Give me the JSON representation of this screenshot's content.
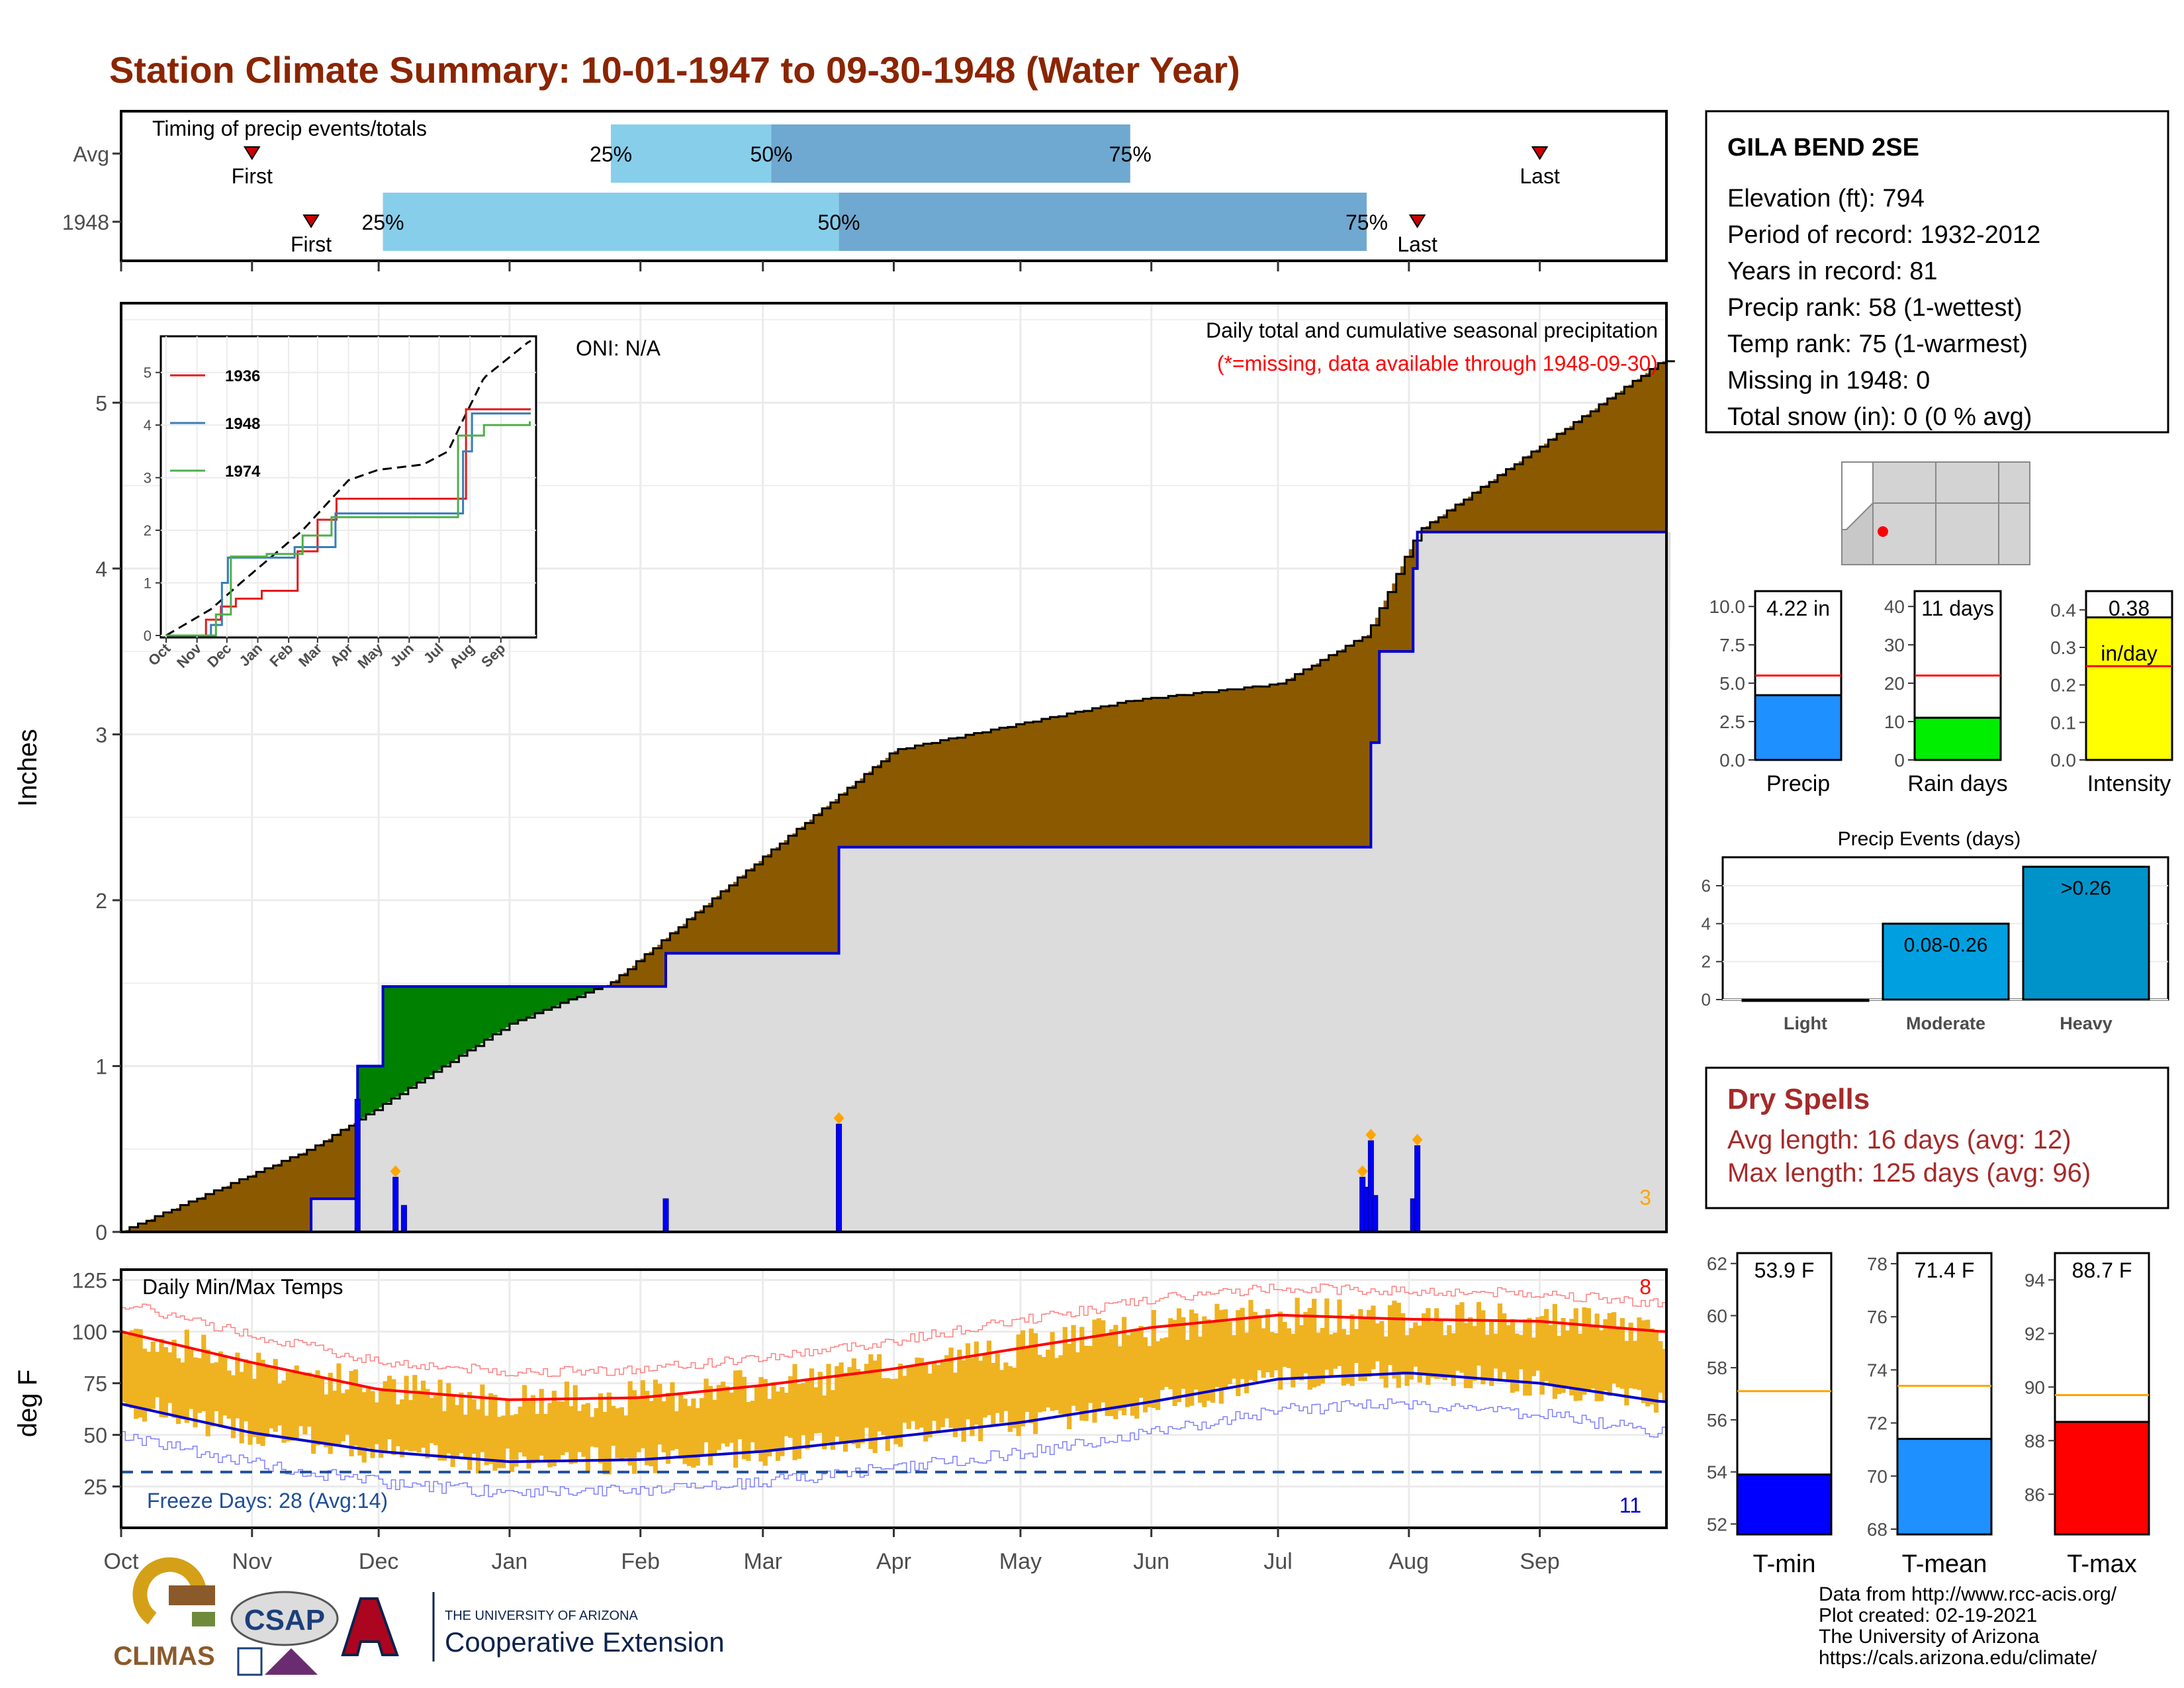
{
  "title": "Station Climate Summary: 10-01-1947 to 09-30-1948 (Water Year)",
  "timing": {
    "label": "Timing of precip events/totals",
    "rows": [
      {
        "name": "Avg",
        "first": "11-01",
        "p25": "01-25",
        "p50": "03-03",
        "p75": "05-27",
        "last": "09-01"
      },
      {
        "name": "1948",
        "first": "11-15",
        "p25": "12-02",
        "p50": "03-19",
        "p75": "07-22",
        "last": "08-03"
      }
    ],
    "first_label": "First",
    "last_label": "Last",
    "p25_label": "25%",
    "p50_label": "50%",
    "p75_label": "75%"
  },
  "station": {
    "name": "GILA BEND 2SE",
    "lines": [
      "Elevation (ft): 794",
      "Period of record: 1932-2012",
      "Years in record: 81",
      "Precip rank: 58 (1-wettest)",
      "Temp rank: 75 (1-warmest)",
      "Missing in 1948: 0",
      "Total snow (in): 0 (0 % avg)"
    ]
  },
  "precip_panel": {
    "ylabel": "Inches",
    "oni": "ONI: N/A",
    "caption": "Daily total and cumulative seasonal precipitation",
    "caption_note": "(*=missing, data available through 1948-09-30)",
    "corner_count": "3",
    "yticks": [
      "0",
      "1",
      "2",
      "3",
      "4",
      "5"
    ]
  },
  "inset": {
    "yticks": [
      "0",
      "1",
      "2",
      "3",
      "4",
      "5"
    ],
    "months": [
      "Oct",
      "Nov",
      "Dec",
      "Jan",
      "Feb",
      "Mar",
      "Apr",
      "May",
      "Jun",
      "Jul",
      "Aug",
      "Sep"
    ],
    "series": [
      {
        "name": "1936",
        "color": "#e41a1c"
      },
      {
        "name": "1948",
        "color": "#377eb8"
      },
      {
        "name": "1974",
        "color": "#4daf4a"
      }
    ]
  },
  "temp_panel": {
    "ylabel": "deg F",
    "label": "Daily Min/Max Temps",
    "freeze_text": "Freeze Days: 28 (Avg:14)",
    "hot_count": "8",
    "cold_count": "11",
    "yticks": [
      "25",
      "50",
      "75",
      "100",
      "125"
    ]
  },
  "month_axis": [
    "Oct",
    "Nov",
    "Dec",
    "Jan",
    "Feb",
    "Mar",
    "Apr",
    "May",
    "Jun",
    "Jul",
    "Aug",
    "Sep"
  ],
  "small_bars": [
    {
      "label": "Precip",
      "value_text": "4.22 in",
      "yticks": [
        "0.0",
        "2.5",
        "5.0",
        "7.5",
        "10.0"
      ],
      "color": "#1e90ff"
    },
    {
      "label": "Rain days",
      "value_text": "11 days",
      "yticks": [
        "0",
        "10",
        "20",
        "30",
        "40"
      ],
      "color": "#00ee00"
    },
    {
      "label": "Intensity",
      "value_text": "0.38",
      "value_text2": "in/day",
      "yticks": [
        "0.0",
        "0.1",
        "0.2",
        "0.3",
        "0.4"
      ],
      "color": "#ffff00"
    }
  ],
  "events": {
    "title": "Precip Events (days)",
    "categories": [
      "Light",
      "Moderate",
      "Heavy"
    ],
    "bar_labels": [
      "",
      "0.08-0.26",
      ">0.26"
    ],
    "yticks": [
      "0",
      "2",
      "4",
      "6"
    ]
  },
  "dry_spells": {
    "title": "Dry Spells",
    "avg": "Avg length: 16 days (avg: 12)",
    "max": "Max length: 125 days (avg: 96)"
  },
  "temp_bars": [
    {
      "label": "T-min",
      "value_text": "53.9 F",
      "yticks": [
        "52",
        "54",
        "56",
        "58",
        "60",
        "62"
      ],
      "color": "#0000ff"
    },
    {
      "label": "T-mean",
      "value_text": "71.4 F",
      "yticks": [
        "68",
        "70",
        "72",
        "74",
        "76",
        "78"
      ],
      "color": "#1e90ff"
    },
    {
      "label": "T-max",
      "value_text": "88.7 F",
      "yticks": [
        "86",
        "88",
        "90",
        "92",
        "94"
      ],
      "color": "#ff0000"
    }
  ],
  "credits": [
    "Data from http://www.rcc-acis.org/",
    "Plot created: 02-19-2021",
    "The University of Arizona",
    "https://cals.arizona.edu/climate/"
  ],
  "logos": {
    "climas": "CLIMAS",
    "csap": "CSAP",
    "ua_small": "THE UNIVERSITY OF ARIZONA",
    "ua_big": "Cooperative Extension"
  },
  "chart_data": [
    {
      "type": "area",
      "ylim": [
        0,
        5.6
      ],
      "cumulative_avg": {
        "x": [
          "10-01",
          "11-15",
          "12-01",
          "01-01",
          "01-25",
          "03-03",
          "04-01",
          "05-27",
          "07-01",
          "07-22",
          "08-03",
          "09-30"
        ],
        "y": [
          0.0,
          0.5,
          0.75,
          1.25,
          1.5,
          2.3,
          2.9,
          3.2,
          3.3,
          3.6,
          4.22,
          5.25
        ]
      },
      "cumulative_1948": {
        "x": [
          "10-01",
          "11-15",
          "11-26",
          "12-02",
          "01-12",
          "02-07",
          "03-19",
          "07-21",
          "07-23",
          "07-25",
          "08-02",
          "08-03",
          "09-30"
        ],
        "y": [
          0.0,
          0.2,
          1.0,
          1.48,
          1.48,
          1.68,
          2.32,
          2.32,
          2.95,
          3.5,
          4.0,
          4.22,
          4.22
        ]
      },
      "daily_precip": {
        "x": [
          "11-26",
          "12-05",
          "12-07",
          "02-07",
          "03-19",
          "07-21",
          "07-22",
          "07-23",
          "07-24",
          "08-02",
          "08-03"
        ],
        "y": [
          0.8,
          0.33,
          0.16,
          0.2,
          0.65,
          0.33,
          0.27,
          0.55,
          0.22,
          0.2,
          0.52
        ]
      }
    },
    {
      "type": "line",
      "ylim": [
        5,
        130
      ],
      "avg_max": {
        "x": [
          "10-01",
          "11-01",
          "12-01",
          "01-01",
          "02-01",
          "03-01",
          "04-01",
          "05-01",
          "06-01",
          "07-01",
          "08-01",
          "09-01",
          "09-30"
        ],
        "y": [
          100,
          85,
          72,
          67,
          68,
          74,
          82,
          92,
          102,
          108,
          106,
          105,
          100
        ]
      },
      "avg_min": {
        "x": [
          "10-01",
          "11-01",
          "12-01",
          "01-01",
          "02-01",
          "03-01",
          "04-01",
          "05-01",
          "06-01",
          "07-01",
          "08-01",
          "09-01",
          "09-30"
        ],
        "y": [
          65,
          51,
          42,
          37,
          38,
          42,
          49,
          56,
          66,
          77,
          80,
          75,
          66
        ]
      },
      "freeze_line": 32
    },
    {
      "type": "bar",
      "categories": [
        "Precip",
        "Rain days",
        "Intensity"
      ],
      "values": [
        4.22,
        11,
        0.38
      ],
      "averages": [
        5.5,
        22,
        0.25
      ],
      "ylims": [
        [
          0,
          11
        ],
        [
          0,
          44
        ],
        [
          0,
          0.45
        ]
      ]
    },
    {
      "type": "bar",
      "categories": [
        "Light",
        "Moderate",
        "Heavy"
      ],
      "values": [
        0,
        4,
        7
      ],
      "ylim": [
        0,
        7.5
      ]
    },
    {
      "type": "bar",
      "categories": [
        "T-min",
        "T-mean",
        "T-max"
      ],
      "values": [
        53.9,
        71.4,
        88.7
      ],
      "averages": [
        57.1,
        73.4,
        89.7
      ],
      "ylims": [
        [
          51.6,
          62.4
        ],
        [
          67.8,
          78.4
        ],
        [
          84.5,
          95.0
        ]
      ]
    }
  ]
}
